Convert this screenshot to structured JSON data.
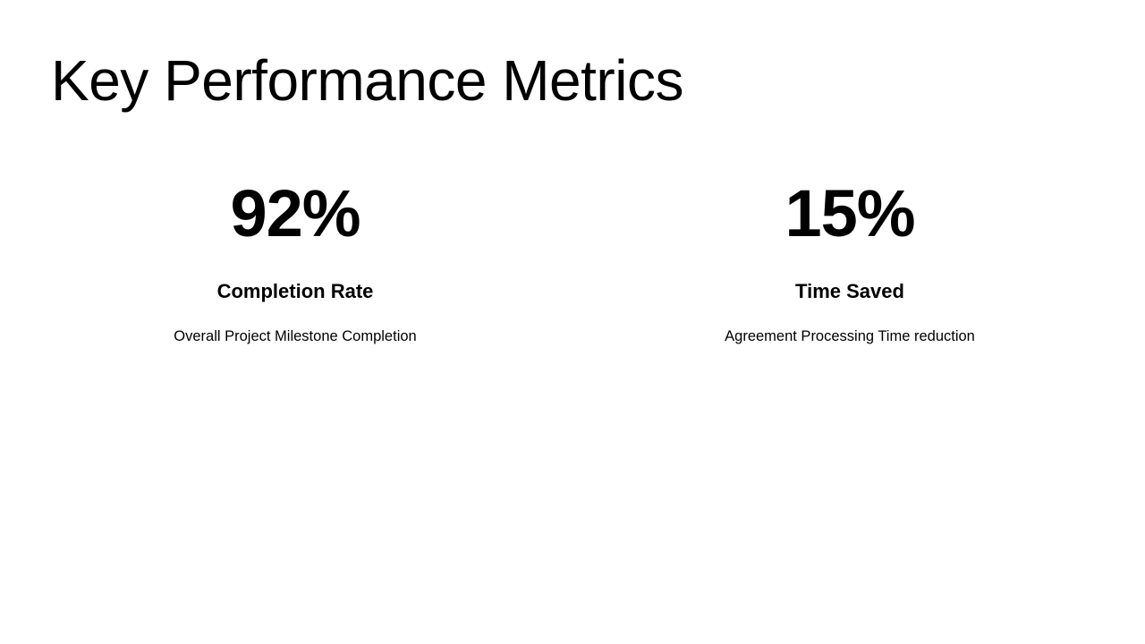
{
  "slide": {
    "title": "Key Performance Metrics"
  },
  "metrics": [
    {
      "value": "92%",
      "label": "Completion Rate",
      "description": "Overall Project Milestone Completion"
    },
    {
      "value": "15%",
      "label": "Time Saved",
      "description": "Agreement Processing Time reduction"
    }
  ]
}
